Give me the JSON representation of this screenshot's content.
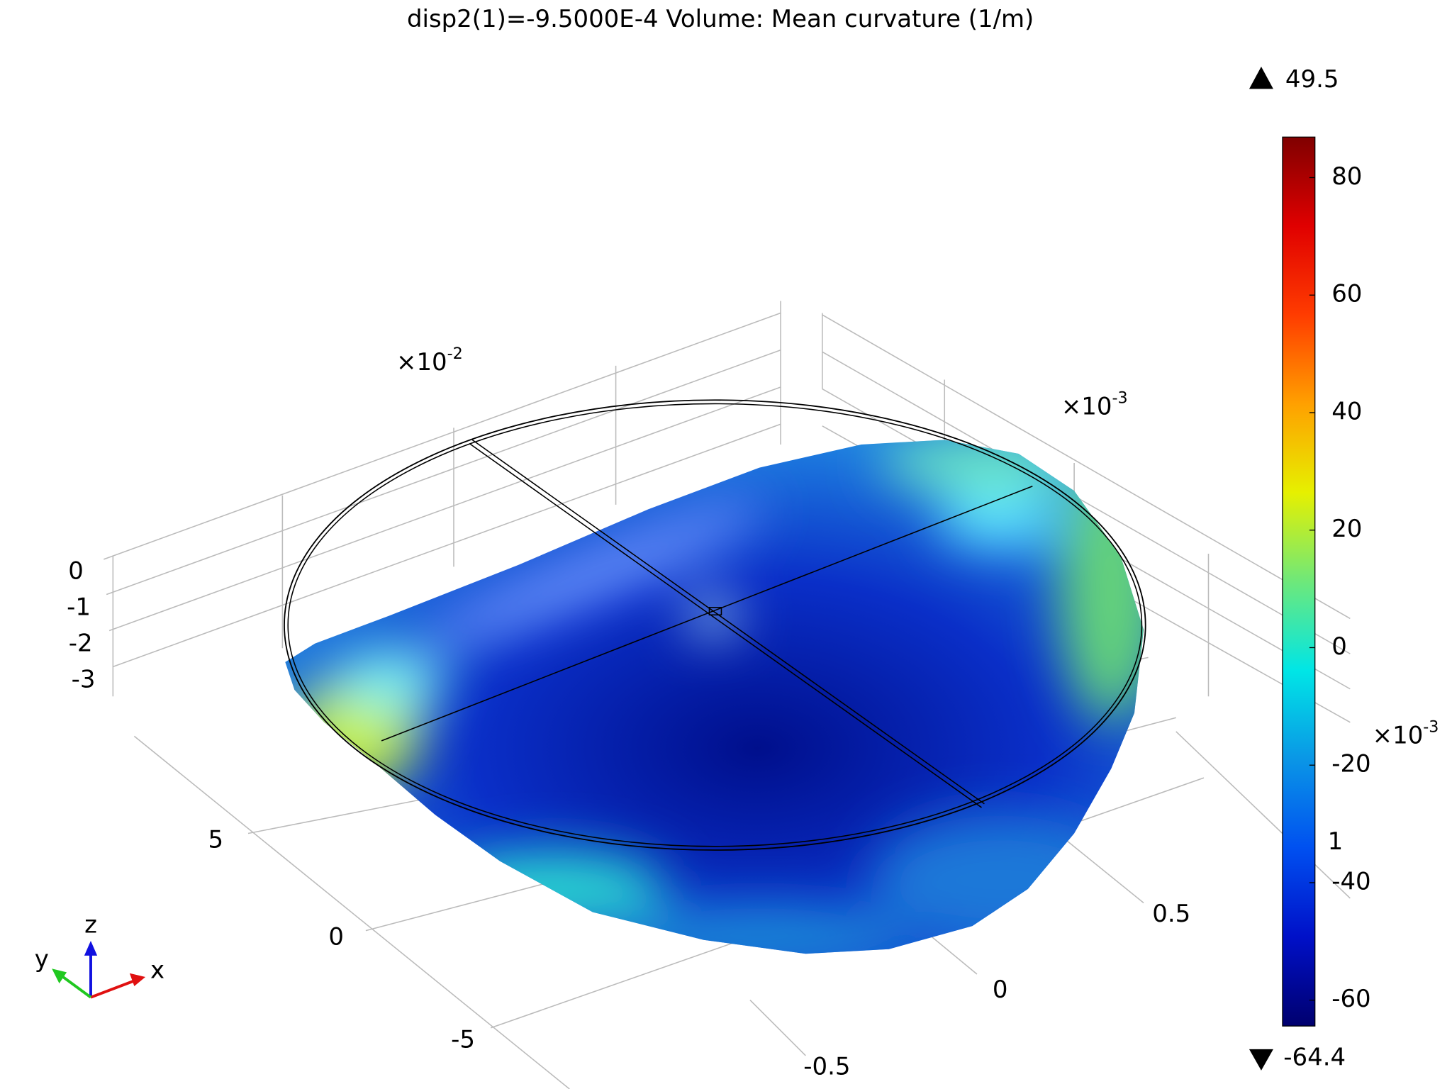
{
  "chart_data": {
    "type": "surface3d",
    "title": "disp2(1)=-9.5000E-4   Volume: Mean curvature (1/m)",
    "zticks": [
      0,
      -1,
      -2,
      -3
    ],
    "z_multiplier": {
      "base": "×10",
      "exp": "-2"
    },
    "yticks": [
      5,
      0,
      -5
    ],
    "xticks": [
      0.5,
      0,
      -0.5
    ],
    "x_multiplier": {
      "base": "×10",
      "exp": "-3"
    },
    "side_multiplier": {
      "base": "×10",
      "exp": "-3"
    },
    "side_tick": 1,
    "triad": {
      "x": "x",
      "y": "y",
      "z": "z"
    },
    "colorbar": {
      "lim": [
        -64.4,
        86.9
      ],
      "ticks": [
        80,
        60,
        40,
        20,
        0,
        -20,
        -40,
        -60
      ],
      "max": 49.5,
      "min": -64.4,
      "colormap": [
        "#00006e",
        "#0010c8",
        "#0050f0",
        "#0a96e6",
        "#00e6e6",
        "#6ee87a",
        "#e6f000",
        "#ffa000",
        "#ff3c00",
        "#e00000",
        "#800000"
      ]
    }
  }
}
